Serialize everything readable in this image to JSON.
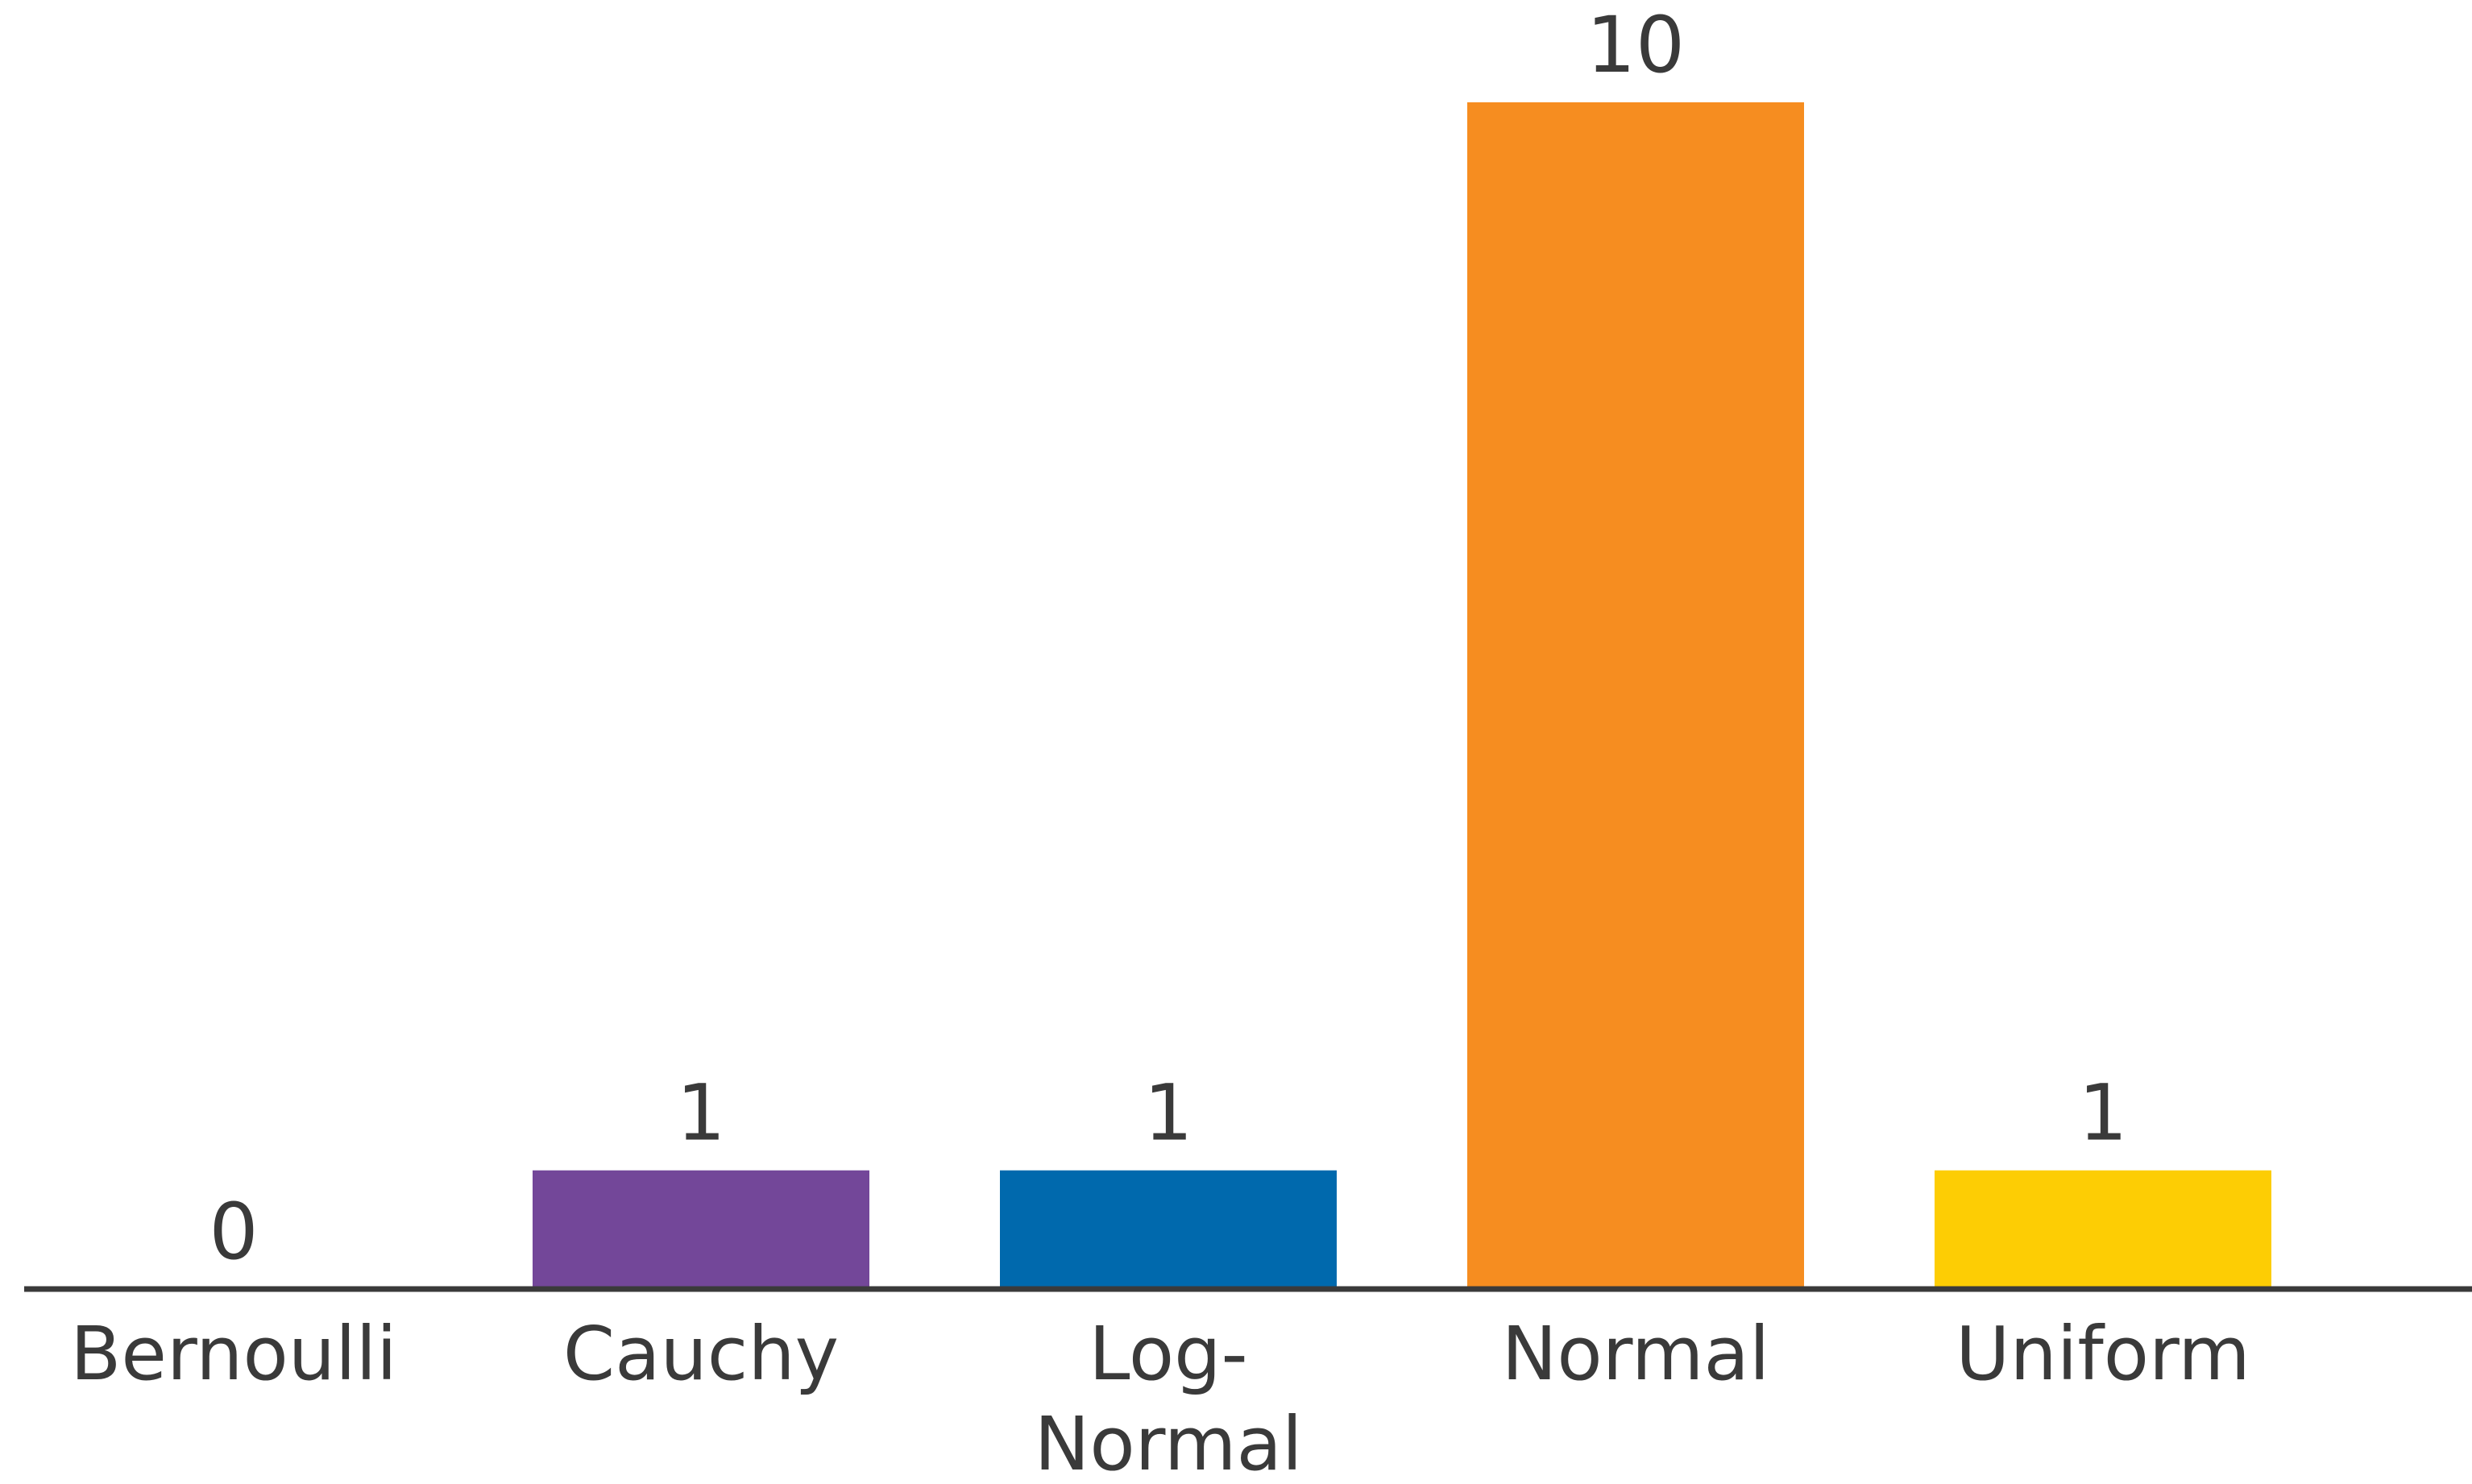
{
  "chart_data": {
    "type": "bar",
    "categories": [
      "Bernoulli",
      "Cauchy",
      "Log-Normal",
      "Normal",
      "Uniform"
    ],
    "category_label_lines": [
      [
        "Bernoulli"
      ],
      [
        "Cauchy"
      ],
      [
        "Log-",
        "Normal"
      ],
      [
        "Normal"
      ],
      [
        "Uniform"
      ]
    ],
    "values": [
      0,
      1,
      1,
      10,
      1
    ],
    "data_labels": [
      "0",
      "1",
      "1",
      "10",
      "1"
    ],
    "colors": [
      "#7a4a9e",
      "#734799",
      "#0069ad",
      "#f68d20",
      "#fdcd04"
    ],
    "axis_color": "#3a3a3a",
    "title": "",
    "xlabel": "",
    "ylabel": "",
    "ylim": [
      0,
      10
    ],
    "grid": false,
    "legend": "none"
  }
}
